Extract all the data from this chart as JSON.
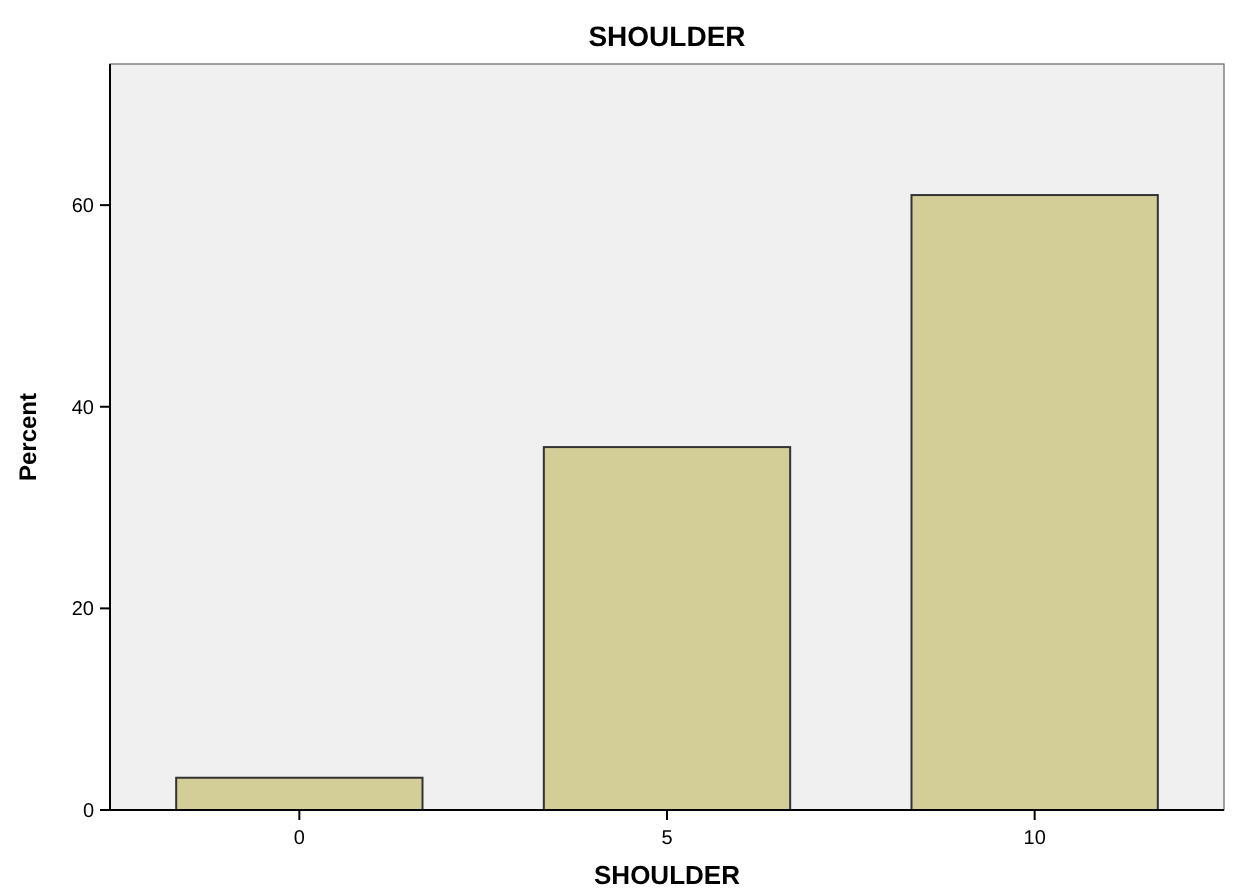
{
  "chart_data": {
    "type": "bar",
    "title": "SHOULDER",
    "xlabel": "SHOULDER",
    "ylabel": "Percent",
    "categories": [
      "0",
      "5",
      "10"
    ],
    "values": [
      3.2,
      36,
      61
    ],
    "color": "#d3ce97",
    "ylim": [
      0,
      74
    ],
    "yticks": [
      0,
      20,
      40,
      60
    ],
    "grid": false
  }
}
